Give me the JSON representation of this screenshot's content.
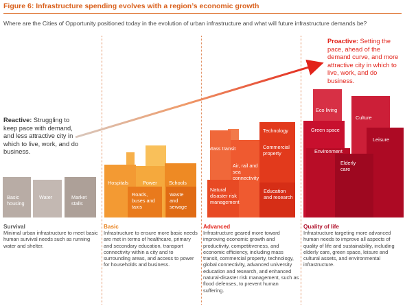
{
  "figure": {
    "title": "Figure 6:  Infrastructure spending evolves with a region’s economic growth",
    "subtitle": "Where are the Cities of Opportunity positioned today in the evolution of urban infrastructure and what will future infrastructure demands be?"
  },
  "reactive": {
    "lead": "Reactive:",
    "text": " Struggling to keep pace with demand, and less attractive city in which to live, work, and do business."
  },
  "proactive": {
    "lead": "Proactive:",
    "text": " Setting the pace, ahead of the demand curve, and more attractive city in which to live, work, and do business."
  },
  "stages": {
    "survival": {
      "title": "Survival",
      "description": "Minimal urban infrastructure to meet basic human survival needs such as running water and shelter.",
      "buildings": [
        "Basic housing",
        "Water",
        "Market stalls"
      ]
    },
    "basic": {
      "title": "Basic",
      "description": "Infrastructure to ensure more basic needs are met in terms of healthcare, primary and secondary education, transport connectivity within a city and to surrounding areas, and access to power for households and business.",
      "buildings": [
        "Hospitals",
        "Power",
        "Schools",
        "Roads, buses and taxis",
        "Waste and sewage"
      ]
    },
    "advanced": {
      "title": "Advanced",
      "description": "Infrastructure geared more toward improving economic growth and productivity, competitiveness, and economic efficiency, including mass transit, commercial property, technology, global connectivity, advanced university education and research, and enhanced natural-disaster risk management, such as flood defenses, to prevent human suffering.",
      "buildings": [
        "Technology",
        "Mass transit",
        "Commercial property",
        "Air, rail and sea connectivity",
        "Natural disaster risk management",
        "Education and research"
      ]
    },
    "quality": {
      "title": "Quality of life",
      "description": "Infrastructure targeting more advanced human needs to improve all aspects of quality of life and sustainability, including elderly care, green space, leisure and cultural assets, and environmental infrastructure.",
      "buildings": [
        "Eco living",
        "Culture",
        "Green space",
        "Environment",
        "Leisure",
        "Elderly care"
      ]
    }
  },
  "colors": {
    "accent_orange": "#d9601c",
    "survival": "#b8aca5",
    "basic": "#f39a33",
    "advanced": "#ec4d24",
    "quality": "#c8102e",
    "proactive_text": "#e2231a"
  }
}
